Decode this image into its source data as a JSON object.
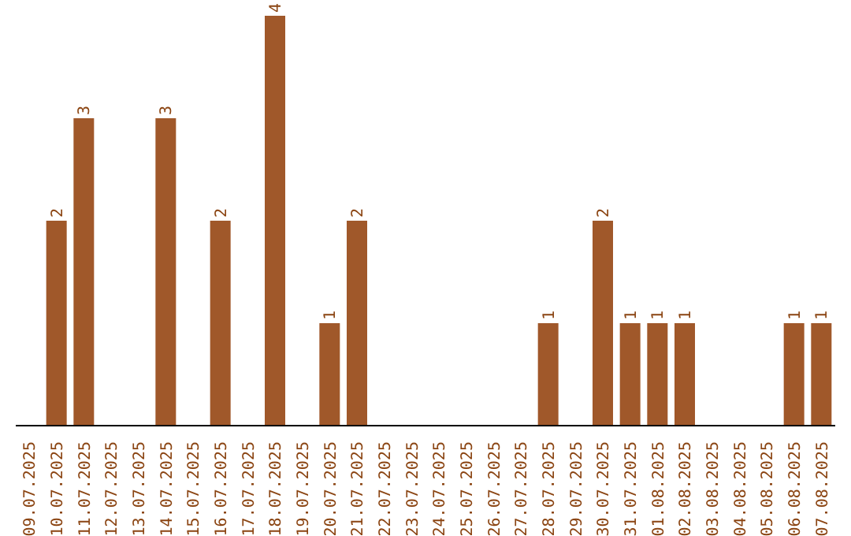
{
  "chart_data": {
    "type": "bar",
    "categories": [
      "09.07.2025",
      "10.07.2025",
      "11.07.2025",
      "12.07.2025",
      "13.07.2025",
      "14.07.2025",
      "15.07.2025",
      "16.07.2025",
      "17.07.2025",
      "18.07.2025",
      "19.07.2025",
      "20.07.2025",
      "21.07.2025",
      "22.07.2025",
      "23.07.2025",
      "24.07.2025",
      "25.07.2025",
      "26.07.2025",
      "27.07.2025",
      "28.07.2025",
      "29.07.2025",
      "30.07.2025",
      "31.07.2025",
      "01.08.2025",
      "02.08.2025",
      "03.08.2025",
      "04.08.2025",
      "05.08.2025",
      "06.08.2025",
      "07.08.2025"
    ],
    "values": [
      0,
      2,
      3,
      0,
      0,
      3,
      0,
      2,
      0,
      4,
      0,
      1,
      2,
      0,
      0,
      0,
      0,
      0,
      0,
      1,
      0,
      2,
      1,
      1,
      1,
      0,
      0,
      0,
      1,
      1
    ],
    "value_labels": [
      null,
      "2",
      "3",
      null,
      null,
      "3",
      null,
      "2",
      null,
      "4",
      null,
      "1",
      "2",
      null,
      null,
      null,
      null,
      null,
      null,
      "1",
      null,
      "2",
      "1",
      "1",
      "1",
      null,
      null,
      null,
      "1",
      "1"
    ],
    "color": "#a0582a",
    "grid": false,
    "tick_labels": "x"
  }
}
